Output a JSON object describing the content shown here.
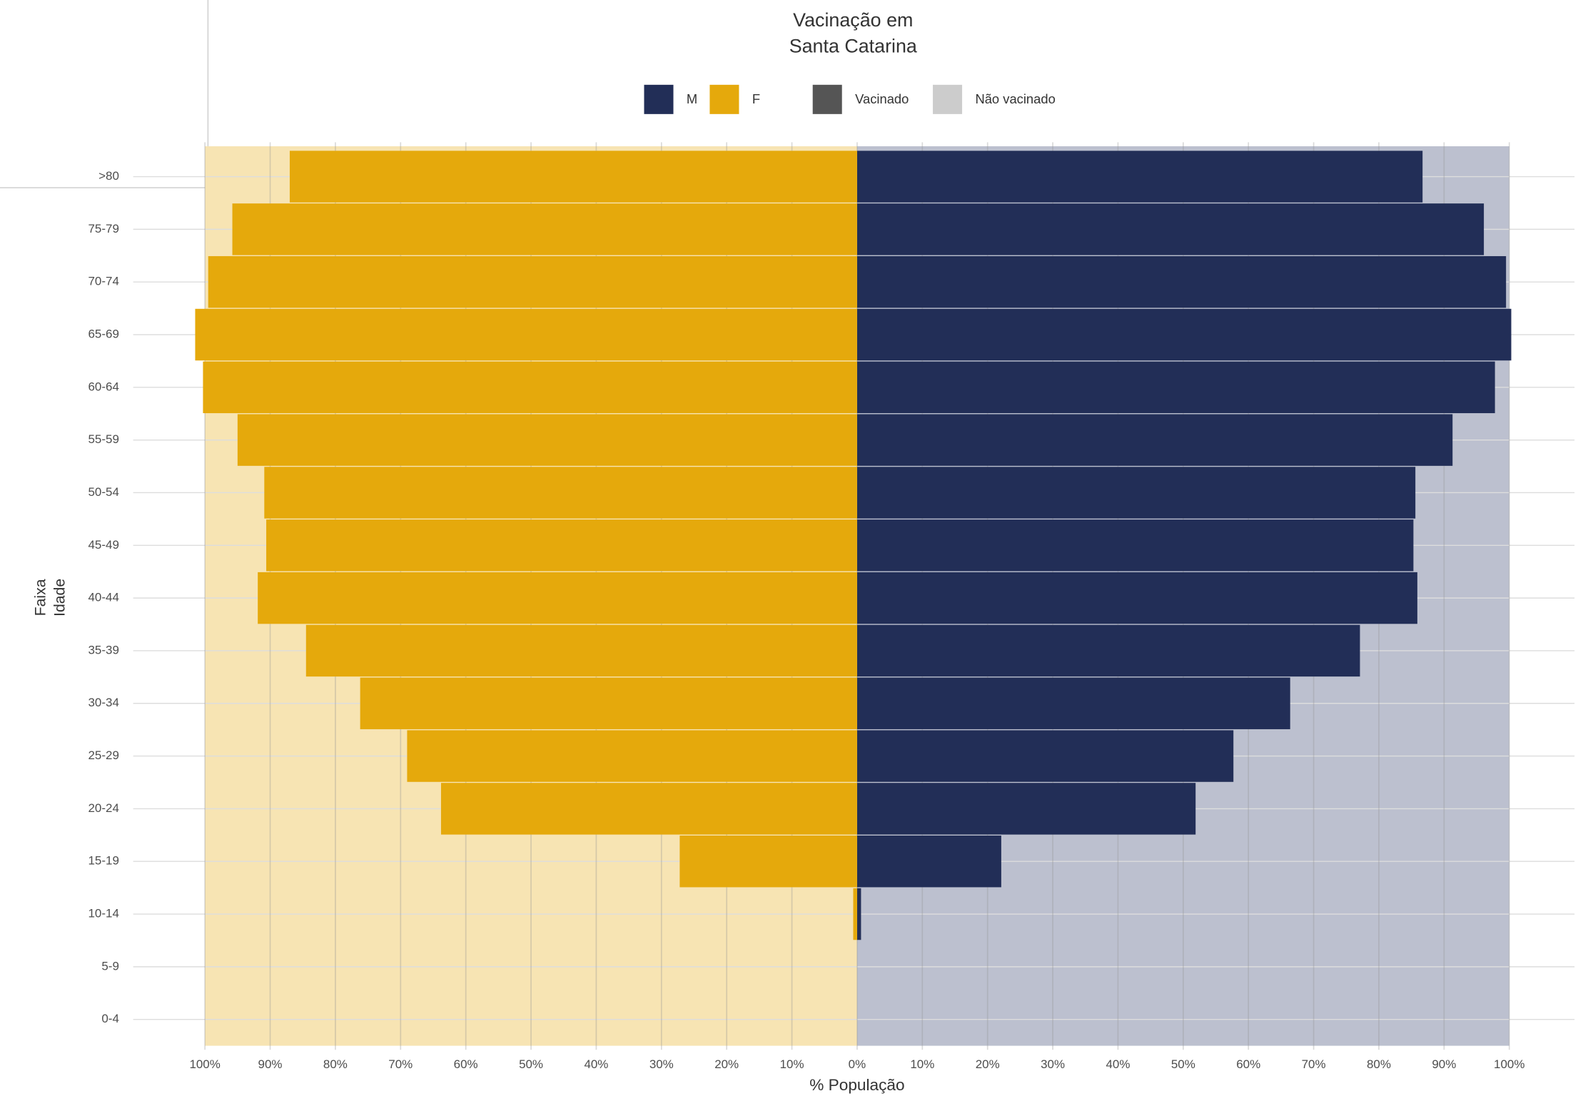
{
  "chart_data": {
    "type": "pyramid",
    "title_lines": [
      "Vacinação em",
      "Santa Catarina"
    ],
    "xlabel": "% População",
    "ylabel_lines": [
      "Faixa",
      "Idade"
    ],
    "categories": [
      "0-4",
      "5-9",
      "10-14",
      "15-19",
      "20-24",
      "25-29",
      "30-34",
      "35-39",
      "40-44",
      "45-49",
      "50-54",
      "55-59",
      "60-64",
      "65-69",
      "70-74",
      "75-79",
      ">80"
    ],
    "series": [
      {
        "name": "M",
        "color": "#222e57",
        "background": "#bcc0cf",
        "values": [
          0,
          0,
          0.6,
          22.1,
          51.9,
          57.7,
          66.4,
          77.1,
          85.9,
          85.3,
          85.6,
          91.3,
          97.8,
          100.3,
          99.5,
          96.1,
          86.7
        ]
      },
      {
        "name": "F",
        "color": "#e5a90c",
        "background": "#f7e4b3",
        "values": [
          0,
          0,
          -0.6,
          -27.2,
          -63.8,
          -69.0,
          -76.2,
          -84.5,
          -91.9,
          -90.6,
          -90.9,
          -95.0,
          -100.3,
          -101.5,
          -99.5,
          -95.8,
          -87.0
        ]
      }
    ],
    "status_legend": [
      {
        "name": "Vacinado",
        "color": "#555555"
      },
      {
        "name": "Não vacinado",
        "color": "#cccccc"
      }
    ],
    "xlim": [
      -111,
      110
    ],
    "xticks": [
      {
        "value": -100,
        "label": "100%"
      },
      {
        "value": -90,
        "label": "90%"
      },
      {
        "value": -80,
        "label": "80%"
      },
      {
        "value": -70,
        "label": "70%"
      },
      {
        "value": -60,
        "label": "60%"
      },
      {
        "value": -50,
        "label": "50%"
      },
      {
        "value": -40,
        "label": "40%"
      },
      {
        "value": -30,
        "label": "30%"
      },
      {
        "value": -20,
        "label": "20%"
      },
      {
        "value": -10,
        "label": "10%"
      },
      {
        "value": 0,
        "label": "0%"
      },
      {
        "value": 10,
        "label": "10%"
      },
      {
        "value": 20,
        "label": "20%"
      },
      {
        "value": 30,
        "label": "30%"
      },
      {
        "value": 40,
        "label": "40%"
      },
      {
        "value": 50,
        "label": "50%"
      },
      {
        "value": 60,
        "label": "60%"
      },
      {
        "value": 70,
        "label": "70%"
      },
      {
        "value": 80,
        "label": "80%"
      },
      {
        "value": 90,
        "label": "90%"
      },
      {
        "value": 100,
        "label": "100%"
      }
    ],
    "grid": true
  }
}
